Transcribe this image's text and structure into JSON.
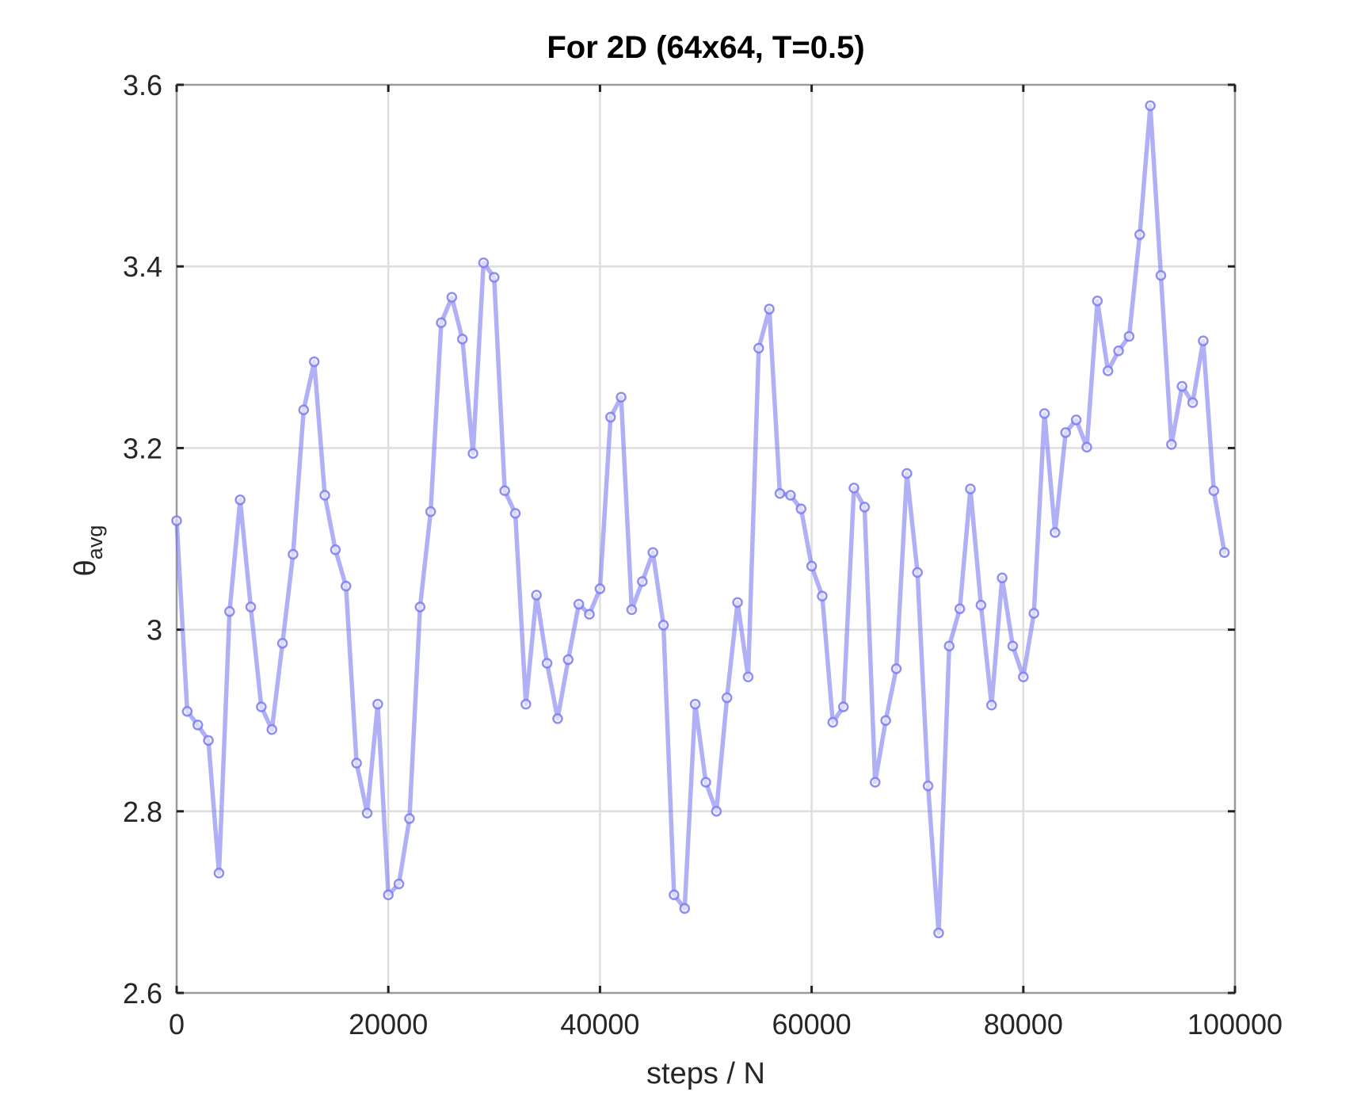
{
  "chart_data": {
    "type": "line",
    "title": "For 2D (64x64, T=0.5)",
    "xlabel": "steps / N",
    "ylabel_base": "θ",
    "ylabel_sub": "avg",
    "xlim": [
      0,
      100000
    ],
    "ylim": [
      2.6,
      3.6
    ],
    "xticks": [
      0,
      20000,
      40000,
      60000,
      80000,
      100000
    ],
    "xtick_labels": [
      "0",
      "20000",
      "40000",
      "60000",
      "80000",
      "100000"
    ],
    "yticks": [
      2.6,
      2.8,
      3.0,
      3.2,
      3.4,
      3.6
    ],
    "ytick_labels": [
      "2.6",
      "2.8",
      "3",
      "3.2",
      "3.4",
      "3.6"
    ],
    "grid": true,
    "line_color": "#7b7bf0",
    "marker": "circle",
    "series": [
      {
        "x": [
          0,
          1000,
          2000,
          3000,
          4000,
          5000,
          6000,
          7000,
          8000,
          9000,
          10000,
          11000,
          12000,
          13000,
          14000,
          15000,
          16000,
          17000,
          18000,
          19000,
          20000,
          21000,
          22000,
          23000,
          24000,
          25000,
          26000,
          27000,
          28000,
          29000,
          30000,
          31000,
          32000,
          33000,
          34000,
          35000,
          36000,
          37000,
          38000,
          39000,
          40000,
          41000,
          42000,
          43000,
          44000,
          45000,
          46000,
          47000,
          48000,
          49000,
          50000,
          51000,
          52000,
          53000,
          54000,
          55000,
          56000,
          57000,
          58000,
          59000,
          60000,
          61000,
          62000,
          63000,
          64000,
          65000,
          66000,
          67000,
          68000,
          69000,
          70000,
          71000,
          72000,
          73000,
          74000,
          75000,
          76000,
          77000,
          78000,
          79000,
          80000,
          81000,
          82000,
          83000,
          84000,
          85000,
          86000,
          87000,
          88000,
          89000,
          90000,
          91000,
          92000,
          93000,
          94000,
          95000,
          96000,
          97000,
          98000,
          99000
        ],
        "y": [
          3.12,
          2.91,
          2.895,
          2.878,
          2.732,
          3.02,
          3.143,
          3.025,
          2.915,
          2.89,
          2.985,
          3.083,
          3.242,
          3.295,
          3.148,
          3.088,
          3.048,
          2.853,
          2.798,
          2.918,
          2.708,
          2.72,
          2.792,
          3.025,
          3.13,
          3.338,
          3.366,
          3.32,
          3.194,
          3.404,
          3.388,
          3.153,
          3.128,
          2.918,
          3.038,
          2.963,
          2.902,
          2.967,
          3.028,
          3.017,
          3.045,
          3.234,
          3.256,
          3.022,
          3.053,
          3.085,
          3.005,
          2.708,
          2.693,
          2.918,
          2.832,
          2.8,
          2.925,
          3.03,
          2.948,
          3.31,
          3.353,
          3.15,
          3.148,
          3.133,
          3.07,
          3.037,
          2.898,
          2.915,
          3.156,
          3.135,
          2.832,
          2.9,
          2.957,
          3.172,
          3.063,
          2.828,
          2.666,
          2.982,
          3.023,
          3.155,
          3.027,
          2.917,
          3.057,
          2.982,
          2.948,
          3.018,
          3.238,
          3.107,
          3.217,
          3.231,
          3.201,
          3.362,
          3.285,
          3.307,
          3.323,
          3.435,
          3.577,
          3.39,
          3.204,
          3.268,
          3.25,
          3.318,
          3.153,
          3.085
        ]
      }
    ]
  }
}
